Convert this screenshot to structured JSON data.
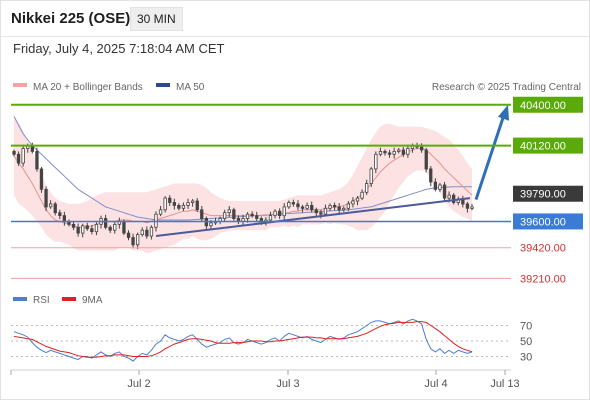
{
  "header": {
    "title": "Nikkei 225 (OSE)",
    "interval": "30 MIN",
    "datetime": "Friday, July 4, 2025 7:18:04 AM CET"
  },
  "legend": {
    "ma_bb": "MA 20 + Bollinger Bands",
    "ma50": "MA 50",
    "rsi": "RSI",
    "ma9": "9MA",
    "copyright": "Research © 2025 Trading Central"
  },
  "colors": {
    "resistance": "#5aab0a",
    "support": "#3a7bd5",
    "pivot": "#3a3a3a",
    "minor": "#e88686",
    "candle": "#444444",
    "trend": "#4a5a9a",
    "arrow": "#2f6fb5",
    "ma20": "#e89090",
    "ma50": "#7f8fc8",
    "band": "#fbd8d8",
    "rsi": "#4a7fd0",
    "rsi_ma": "#dd2222"
  },
  "levels": [
    {
      "label": "40400.00",
      "value": 40400,
      "style": "resistance",
      "box": true
    },
    {
      "label": "40120.00",
      "value": 40120,
      "style": "resistance",
      "box": true
    },
    {
      "label": "39790.00",
      "value": 39790,
      "style": "pivot",
      "box": true
    },
    {
      "label": "39600.00",
      "value": 39600,
      "style": "support",
      "box": true
    },
    {
      "label": "39420.00",
      "value": 39420,
      "style": "minor",
      "box": false
    },
    {
      "label": "39210.00",
      "value": 39210,
      "style": "minor",
      "box": false
    }
  ],
  "chart_data": {
    "type": "candlestick",
    "price_range": [
      39130,
      40460
    ],
    "x_ticks": [
      "Jul 2",
      "Jul 3",
      "Jul 4",
      "Jul 13"
    ],
    "rsi_ticks": [
      70,
      50,
      30
    ],
    "rsi_range": [
      10,
      90
    ],
    "trendline": [
      39500,
      39760
    ],
    "projection": [
      39750,
      40400
    ],
    "closes": [
      40060,
      40000,
      40100,
      40120,
      40080,
      39960,
      39820,
      39700,
      39720,
      39660,
      39640,
      39600,
      39580,
      39560,
      39520,
      39570,
      39550,
      39530,
      39580,
      39620,
      39560,
      39540,
      39580,
      39600,
      39520,
      39490,
      39440,
      39510,
      39540,
      39500,
      39560,
      39650,
      39680,
      39760,
      39730,
      39710,
      39690,
      39710,
      39730,
      39740,
      39680,
      39620,
      39570,
      39590,
      39600,
      39620,
      39660,
      39680,
      39620,
      39600,
      39620,
      39650,
      39640,
      39620,
      39600,
      39610,
      39640,
      39670,
      39640,
      39700,
      39730,
      39720,
      39700,
      39690,
      39710,
      39680,
      39660,
      39650,
      39690,
      39710,
      39700,
      39680,
      39690,
      39720,
      39740,
      39760,
      39800,
      39860,
      39960,
      40060,
      40080,
      40070,
      40060,
      40080,
      40090,
      40060,
      40100,
      40120,
      40110,
      40090,
      39960,
      39870,
      39820,
      39850,
      39760,
      39780,
      39730,
      39750,
      39720,
      39690,
      39700
    ],
    "ma20": [
      40050,
      40000,
      39960,
      39910,
      39860,
      39800,
      39740,
      39680,
      39640,
      39610,
      39600,
      39590,
      39580,
      39570,
      39560,
      39560,
      39560,
      39570,
      39580,
      39590,
      39600,
      39600,
      39600,
      39610,
      39610,
      39610,
      39600,
      39600,
      39600,
      39590,
      39600,
      39610,
      39620,
      39630,
      39640,
      39650,
      39660,
      39670,
      39670,
      39680,
      39670,
      39660,
      39650,
      39640,
      39640,
      39640,
      39640,
      39640,
      39640,
      39640,
      39640,
      39640,
      39640,
      39640,
      39640,
      39640,
      39650,
      39650,
      39650,
      39660,
      39660,
      39670,
      39670,
      39680,
      39680,
      39680,
      39680,
      39680,
      39690,
      39690,
      39700,
      39700,
      39710,
      39720,
      39740,
      39760,
      39790,
      39820,
      39860,
      39900,
      39940,
      39970,
      40000,
      40020,
      40040,
      40060,
      40080,
      40090,
      40100,
      40100,
      40090,
      40060,
      40030,
      40000,
      39960,
      39930,
      39900,
      39870,
      39840,
      39810,
      39780
    ],
    "ma50": [
      40320,
      40260,
      40200,
      40160,
      40120,
      40090,
      40060,
      40030,
      40000,
      39970,
      39940,
      39910,
      39880,
      39850,
      39820,
      39800,
      39780,
      39760,
      39740,
      39720,
      39700,
      39690,
      39680,
      39670,
      39660,
      39650,
      39640,
      39630,
      39625,
      39620,
      39615,
      39610,
      39610,
      39610,
      39610,
      39610,
      39610,
      39610,
      39610,
      39612,
      39614,
      39616,
      39618,
      39620,
      39622,
      39624,
      39626,
      39628,
      39630,
      39632,
      39634,
      39636,
      39638,
      39640,
      39642,
      39644,
      39646,
      39648,
      39650,
      39652,
      39654,
      39656,
      39658,
      39660,
      39662,
      39664,
      39666,
      39668,
      39670,
      39672,
      39674,
      39676,
      39678,
      39680,
      39684,
      39688,
      39692,
      39696,
      39700,
      39710,
      39720,
      39730,
      39740,
      39750,
      39760,
      39770,
      39780,
      39790,
      39800,
      39810,
      39820,
      39826,
      39830,
      39832,
      39834,
      39836,
      39838,
      39838,
      39838,
      39838,
      39838
    ],
    "bb_upper": [
      40320,
      40280,
      40220,
      40150,
      40080,
      40000,
      39920,
      39850,
      39800,
      39760,
      39740,
      39730,
      39720,
      39720,
      39720,
      39730,
      39740,
      39760,
      39780,
      39790,
      39800,
      39800,
      39800,
      39800,
      39800,
      39800,
      39800,
      39800,
      39800,
      39800,
      39810,
      39820,
      39830,
      39840,
      39850,
      39860,
      39860,
      39860,
      39860,
      39860,
      39860,
      39850,
      39830,
      39800,
      39780,
      39760,
      39750,
      39740,
      39740,
      39740,
      39740,
      39740,
      39740,
      39740,
      39740,
      39740,
      39740,
      39740,
      39740,
      39750,
      39760,
      39770,
      39780,
      39780,
      39780,
      39780,
      39780,
      39780,
      39790,
      39800,
      39810,
      39820,
      39840,
      39870,
      39920,
      39980,
      40040,
      40100,
      40160,
      40210,
      40250,
      40270,
      40270,
      40260,
      40250,
      40250,
      40250,
      40250,
      40250,
      40250,
      40240,
      40230,
      40220,
      40200,
      40180,
      40160,
      40130,
      40090,
      40050,
      40000,
      39960
    ],
    "bb_lower": [
      39780,
      39720,
      39700,
      39670,
      39640,
      39600,
      39560,
      39510,
      39480,
      39460,
      39460,
      39450,
      39440,
      39420,
      39400,
      39400,
      39400,
      39400,
      39400,
      39400,
      39400,
      39400,
      39400,
      39420,
      39420,
      39420,
      39400,
      39400,
      39400,
      39380,
      39390,
      39400,
      39410,
      39420,
      39430,
      39440,
      39460,
      39480,
      39480,
      39500,
      39480,
      39470,
      39470,
      39480,
      39500,
      39520,
      39530,
      39540,
      39540,
      39540,
      39540,
      39540,
      39540,
      39540,
      39540,
      39540,
      39560,
      39560,
      39560,
      39570,
      39560,
      39570,
      39560,
      39580,
      39580,
      39580,
      39580,
      39580,
      39590,
      39580,
      39590,
      39580,
      39580,
      39570,
      39560,
      39540,
      39540,
      39540,
      39560,
      39590,
      39630,
      39670,
      39730,
      39780,
      39830,
      39870,
      39910,
      39930,
      39950,
      39950,
      39940,
      39890,
      39840,
      39800,
      39740,
      39700,
      39670,
      39650,
      39630,
      39620,
      39600
    ],
    "rsi": [
      62,
      60,
      58,
      55,
      48,
      42,
      38,
      35,
      38,
      36,
      34,
      32,
      30,
      28,
      26,
      30,
      30,
      28,
      32,
      36,
      32,
      30,
      34,
      36,
      30,
      28,
      24,
      30,
      34,
      32,
      38,
      46,
      50,
      58,
      54,
      52,
      50,
      52,
      56,
      58,
      52,
      46,
      42,
      44,
      46,
      48,
      52,
      54,
      48,
      46,
      48,
      52,
      50,
      48,
      46,
      48,
      52,
      54,
      50,
      56,
      60,
      58,
      56,
      54,
      56,
      52,
      50,
      48,
      52,
      56,
      54,
      52,
      54,
      58,
      60,
      62,
      66,
      70,
      74,
      76,
      76,
      74,
      72,
      74,
      76,
      72,
      76,
      78,
      76,
      72,
      52,
      40,
      36,
      40,
      34,
      38,
      34,
      38,
      36,
      34,
      36
    ],
    "rsi_ma": [
      56,
      55,
      54,
      53,
      52,
      49,
      46,
      43,
      41,
      39,
      37,
      36,
      35,
      33,
      31,
      30,
      29,
      29,
      29,
      30,
      31,
      31,
      32,
      32,
      32,
      31,
      30,
      30,
      30,
      30,
      31,
      33,
      36,
      40,
      43,
      46,
      48,
      50,
      52,
      53,
      53,
      52,
      51,
      50,
      48,
      47,
      47,
      47,
      48,
      48,
      48,
      49,
      50,
      50,
      50,
      49,
      49,
      50,
      50,
      51,
      52,
      53,
      54,
      55,
      55,
      55,
      54,
      54,
      53,
      53,
      53,
      53,
      53,
      54,
      55,
      56,
      58,
      60,
      63,
      66,
      69,
      71,
      72,
      73,
      74,
      74,
      74,
      74,
      75,
      75,
      74,
      70,
      66,
      62,
      57,
      52,
      47,
      43,
      40,
      38,
      36
    ]
  }
}
